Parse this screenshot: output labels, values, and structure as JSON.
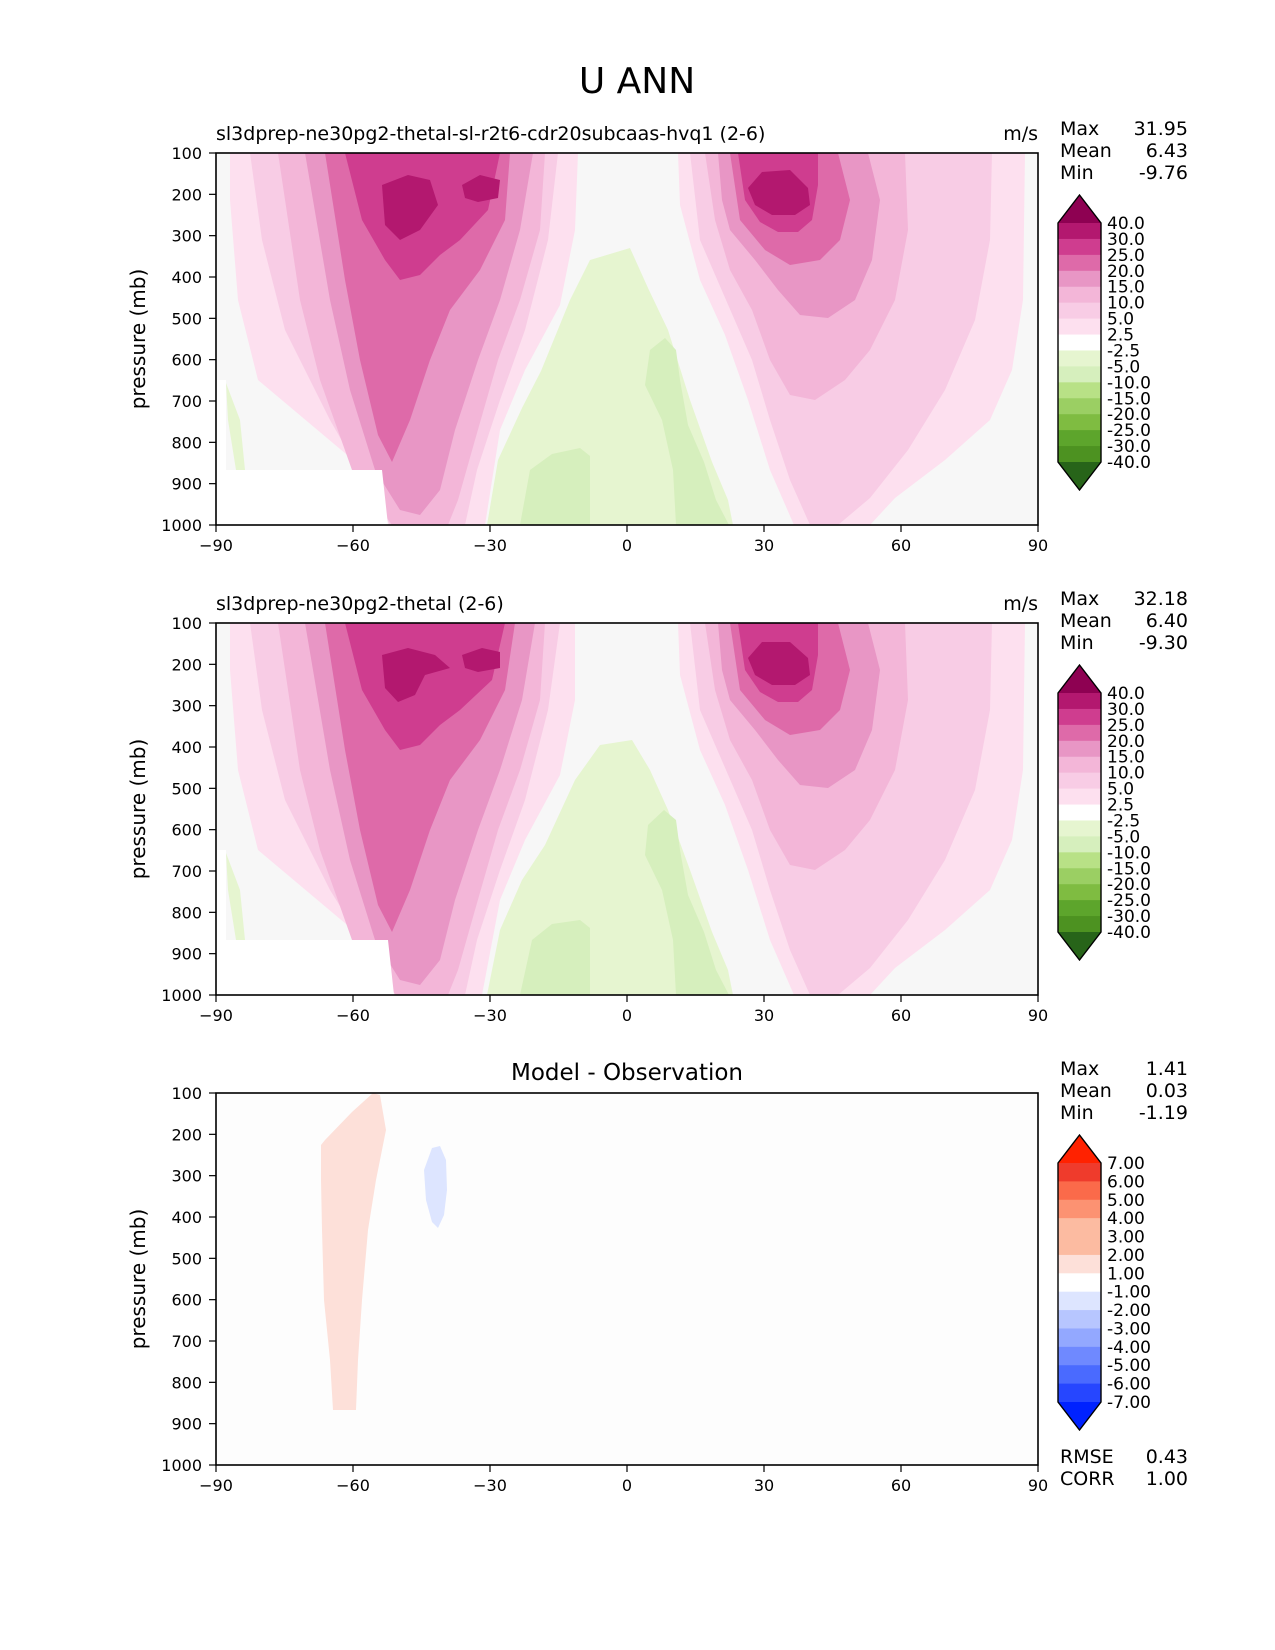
{
  "title": "U ANN",
  "colors": {
    "pos": [
      "#f7f7f7",
      "#fde0ef",
      "#f8cce5",
      "#f3b6d8",
      "#e896c5",
      "#de6aa9",
      "#cf3d8f",
      "#b3186f",
      "#8e0152"
    ],
    "neg": [
      "#f7f7f7",
      "#e6f5d0",
      "#d6efbd",
      "#b8e186",
      "#9bcf63",
      "#7fbc41",
      "#5da52c",
      "#4d9221",
      "#276419"
    ],
    "diff_pos": [
      "#fde0d9",
      "#fcbba1",
      "#fc9272",
      "#fb6a4a",
      "#ef3b2c",
      "#ff2200"
    ],
    "diff_neg": [
      "#dde5ff",
      "#b7c6ff",
      "#93a8ff",
      "#6f89ff",
      "#4a6aff",
      "#2646ff",
      "#0022ff"
    ]
  },
  "chart_data": [
    {
      "type": "heatmap",
      "title": "sl3dprep-ne30pg2-thetal-sl-r2t6-cdr20subcaas-hvq1 (2-6)",
      "units": "m/s",
      "xlabel": "",
      "ylabel": "pressure (mb)",
      "xlim": [
        -90,
        90
      ],
      "ylim": [
        1000,
        100
      ],
      "x_ticks": [
        "−90",
        "−60",
        "−30",
        "0",
        "30",
        "60",
        "90"
      ],
      "y_ticks": [
        "100",
        "200",
        "300",
        "400",
        "500",
        "600",
        "700",
        "800",
        "900",
        "1000"
      ],
      "stats": [
        {
          "label": "Max",
          "value": "31.95"
        },
        {
          "label": "Mean",
          "value": "6.43"
        },
        {
          "label": "Min",
          "value": "-9.76"
        }
      ],
      "colorbar_levels": [
        "40.0",
        "30.0",
        "25.0",
        "20.0",
        "15.0",
        "10.0",
        "5.0",
        "2.5",
        "-2.5",
        "-5.0",
        "-10.0",
        "-15.0",
        "-20.0",
        "-25.0",
        "-30.0",
        "-40.0"
      ],
      "jets": [
        {
          "lat": -47,
          "plev": 220,
          "max": 32
        },
        {
          "lat": 33,
          "plev": 200,
          "max": 27
        }
      ]
    },
    {
      "type": "heatmap",
      "title": "sl3dprep-ne30pg2-thetal (2-6)",
      "units": "m/s",
      "xlabel": "",
      "ylabel": "pressure (mb)",
      "xlim": [
        -90,
        90
      ],
      "ylim": [
        1000,
        100
      ],
      "x_ticks": [
        "−90",
        "−60",
        "−30",
        "0",
        "30",
        "60",
        "90"
      ],
      "y_ticks": [
        "100",
        "200",
        "300",
        "400",
        "500",
        "600",
        "700",
        "800",
        "900",
        "1000"
      ],
      "stats": [
        {
          "label": "Max",
          "value": "32.18"
        },
        {
          "label": "Mean",
          "value": "6.40"
        },
        {
          "label": "Min",
          "value": "-9.30"
        }
      ],
      "colorbar_levels": [
        "40.0",
        "30.0",
        "25.0",
        "20.0",
        "15.0",
        "10.0",
        "5.0",
        "2.5",
        "-2.5",
        "-5.0",
        "-10.0",
        "-15.0",
        "-20.0",
        "-25.0",
        "-30.0",
        "-40.0"
      ],
      "jets": [
        {
          "lat": -47,
          "plev": 220,
          "max": 32
        },
        {
          "lat": 33,
          "plev": 200,
          "max": 27
        }
      ]
    },
    {
      "type": "heatmap",
      "title": "Model - Observation",
      "units": "",
      "xlabel": "",
      "ylabel": "pressure (mb)",
      "xlim": [
        -90,
        90
      ],
      "ylim": [
        1000,
        100
      ],
      "x_ticks": [
        "−90",
        "−60",
        "−30",
        "0",
        "30",
        "60",
        "90"
      ],
      "y_ticks": [
        "100",
        "200",
        "300",
        "400",
        "500",
        "600",
        "700",
        "800",
        "900",
        "1000"
      ],
      "stats": [
        {
          "label": "Max",
          "value": "1.41"
        },
        {
          "label": "Mean",
          "value": "0.03"
        },
        {
          "label": "Min",
          "value": "-1.19"
        }
      ],
      "colorbar_levels": [
        "7.00",
        "6.00",
        "5.00",
        "4.00",
        "3.00",
        "2.00",
        "1.00",
        "-1.00",
        "-2.00",
        "-3.00",
        "-4.00",
        "-5.00",
        "-6.00",
        "-7.00"
      ],
      "extra_stats": [
        {
          "label": "RMSE",
          "value": "0.43"
        },
        {
          "label": "CORR",
          "value": "1.00"
        }
      ]
    }
  ]
}
